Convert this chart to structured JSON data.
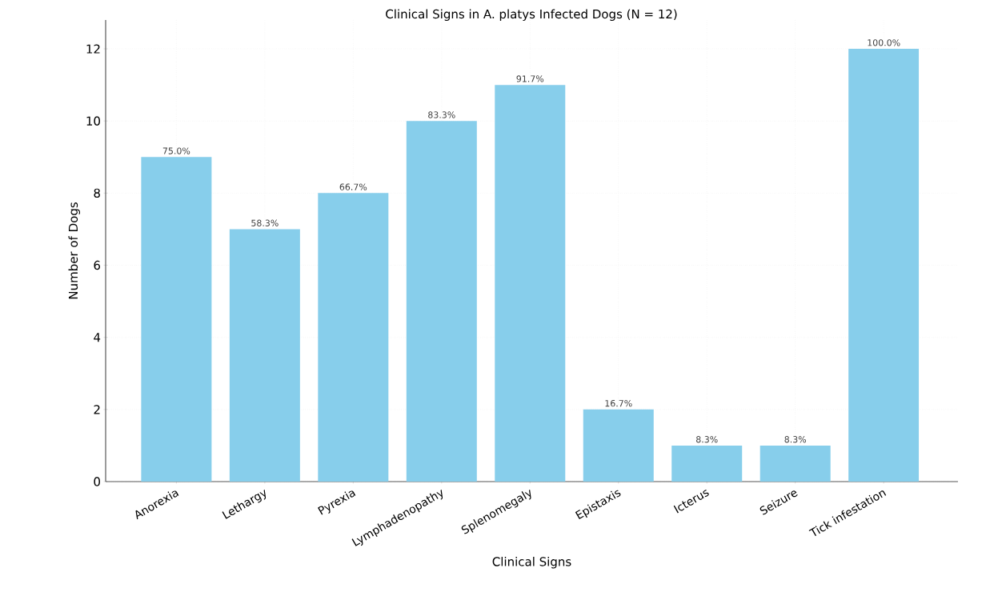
{
  "chart_data": {
    "type": "bar",
    "title": "Clinical Signs in A. platys Infected Dogs (N = 12)",
    "xlabel": "Clinical Signs",
    "ylabel": "Number of Dogs",
    "categories": [
      "Anorexia",
      "Lethargy",
      "Pyrexia",
      "Lymphadenopathy",
      "Splenomegaly",
      "Epistaxis",
      "Icterus",
      "Seizure",
      "Tick infestation"
    ],
    "values": [
      9,
      7,
      8,
      10,
      11,
      2,
      1,
      1,
      12
    ],
    "annotations": [
      {
        "text": "75.0%",
        "x": "Anorexia",
        "y": 9
      },
      {
        "text": "58.3%",
        "x": "Lethargy",
        "y": 7
      },
      {
        "text": "66.7%",
        "x": "Pyrexia",
        "y": 8
      },
      {
        "text": "83.3%",
        "x": "Lymphadenopathy",
        "y": 10
      },
      {
        "text": "91.7%",
        "x": "Splenomegaly",
        "y": 11
      },
      {
        "text": "16.7%",
        "x": "Epistaxis",
        "y": 2
      },
      {
        "text": "8.3%",
        "x": "Icterus",
        "y": 1
      },
      {
        "text": "8.3%",
        "x": "Seizure",
        "y": 1
      },
      {
        "text": "100.0%",
        "x": "Tick infestation",
        "y": 12
      }
    ],
    "color": "#87ceeb",
    "ylim": [
      0,
      12.8
    ],
    "yticks": [
      0,
      2,
      4,
      6,
      8,
      10,
      12
    ],
    "grid": true
  }
}
